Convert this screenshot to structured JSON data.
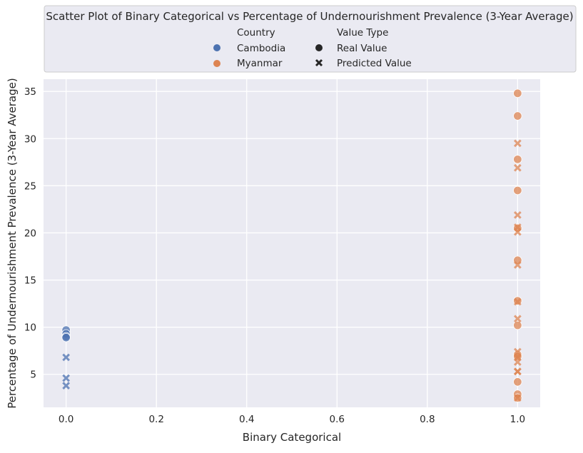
{
  "chart_data": {
    "type": "scatter",
    "title": "Scatter Plot of Binary Categorical vs Percentage of Undernourishment Prevalence (3-Year Average)",
    "xlabel": "Binary Categorical",
    "ylabel": "Percentage of Undernourishment Prevalence (3-Year Average)",
    "xlim": [
      -0.05,
      1.05
    ],
    "ylim": [
      1.5,
      36.3
    ],
    "xticks": [
      0.0,
      0.2,
      0.4,
      0.6,
      0.8,
      1.0
    ],
    "xtick_labels": [
      "0.0",
      "0.2",
      "0.4",
      "0.6",
      "0.8",
      "1.0"
    ],
    "yticks": [
      5,
      10,
      15,
      20,
      25,
      30,
      35
    ],
    "ytick_labels": [
      "5",
      "10",
      "15",
      "20",
      "25",
      "30",
      "35"
    ],
    "grid": true,
    "legend": {
      "placement": "top-center",
      "hue_title": "Country",
      "style_title": "Value Type",
      "hue_entries": [
        "Cambodia",
        "Myanmar"
      ],
      "style_entries": [
        "Real Value",
        "Predicted Value"
      ]
    },
    "colors": {
      "Cambodia": "#4c72b0",
      "Myanmar": "#dd8452"
    },
    "series": [
      {
        "country": "Cambodia",
        "value_type": "Real Value",
        "marker": "circle",
        "x": [
          0,
          0,
          0,
          0
        ],
        "y": [
          9.7,
          9.3,
          9.0,
          8.9
        ]
      },
      {
        "country": "Cambodia",
        "value_type": "Predicted Value",
        "marker": "x",
        "x": [
          0,
          0,
          0
        ],
        "y": [
          6.8,
          4.6,
          3.8
        ]
      },
      {
        "country": "Myanmar",
        "value_type": "Real Value",
        "marker": "circle",
        "x": [
          1,
          1,
          1,
          1,
          1,
          1,
          1,
          1,
          1,
          1,
          1,
          1,
          1
        ],
        "y": [
          34.8,
          32.4,
          27.8,
          24.5,
          20.5,
          17.1,
          12.8,
          10.2,
          7.1,
          6.9,
          4.2,
          2.9,
          2.5
        ]
      },
      {
        "country": "Myanmar",
        "value_type": "Predicted Value",
        "marker": "x",
        "x": [
          1,
          1,
          1,
          1,
          1,
          1,
          1,
          1,
          1,
          1,
          1,
          1,
          1,
          1
        ],
        "y": [
          29.5,
          26.9,
          21.9,
          20.6,
          20.1,
          16.6,
          12.7,
          10.9,
          7.4,
          6.3,
          5.3,
          5.3,
          2.5,
          6.8
        ]
      }
    ]
  }
}
